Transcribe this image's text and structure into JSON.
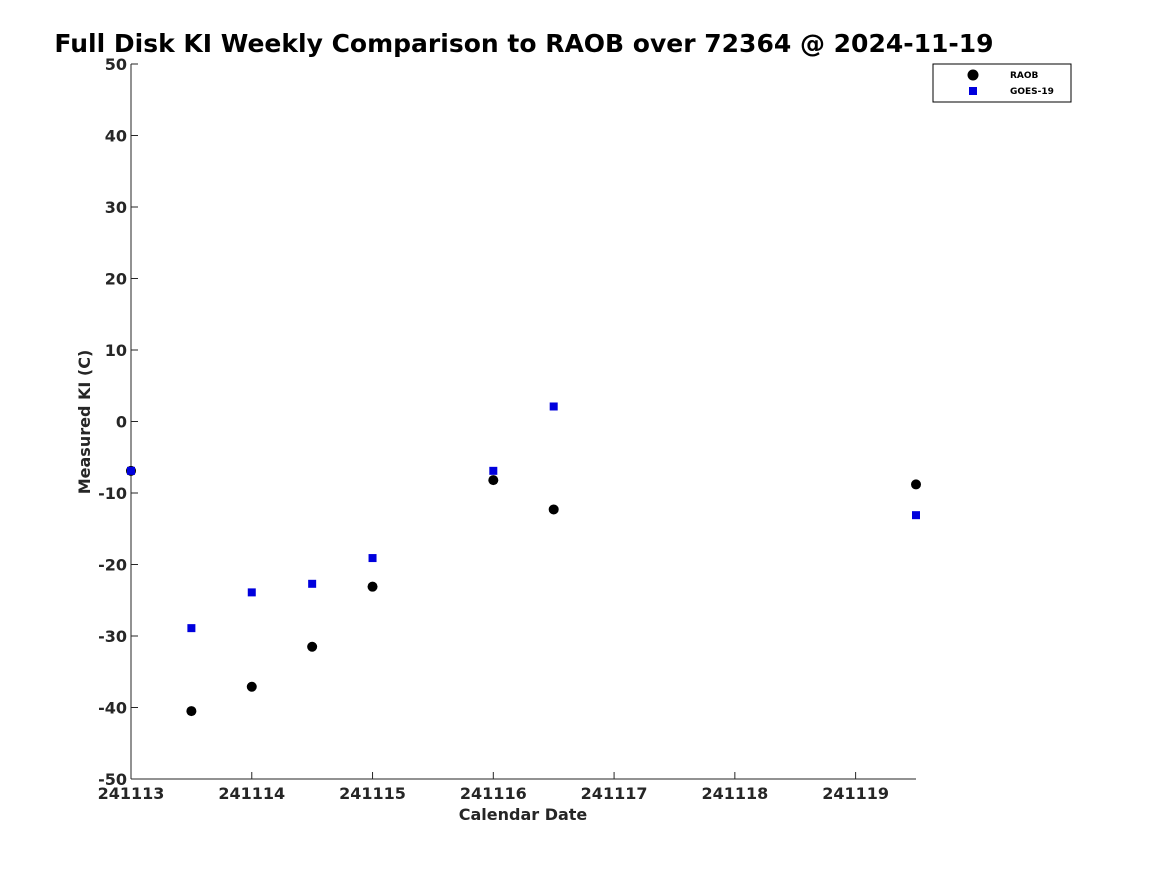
{
  "chart_data": {
    "type": "scatter",
    "title": "Full Disk KI Weekly Comparison to RAOB over 72364 @ 2024-11-19",
    "xlabel": "Calendar Date",
    "ylabel": "Measured KI (C)",
    "xlim": [
      "2024-11-13 00:00",
      "2024-11-19 12:00"
    ],
    "ylim": [
      -50,
      50
    ],
    "x_ticks": [
      {
        "date": "2024-11-13",
        "label": "241113"
      },
      {
        "date": "2024-11-14",
        "label": "241114"
      },
      {
        "date": "2024-11-15",
        "label": "241115"
      },
      {
        "date": "2024-11-16",
        "label": "241116"
      },
      {
        "date": "2024-11-17",
        "label": "241117"
      },
      {
        "date": "2024-11-18",
        "label": "241118"
      },
      {
        "date": "2024-11-19",
        "label": "241119"
      }
    ],
    "y_ticks": [
      50,
      40,
      30,
      20,
      10,
      0,
      -10,
      -20,
      -30,
      -40,
      -50
    ],
    "grid": false,
    "legend_position": "top-right",
    "series": [
      {
        "name": "RAOB",
        "marker": "circle",
        "color": "#000000",
        "points": [
          {
            "x": "2024-11-13 00:00",
            "y": -6.9
          },
          {
            "x": "2024-11-13 12:00",
            "y": -40.5
          },
          {
            "x": "2024-11-14 00:00",
            "y": -37.1
          },
          {
            "x": "2024-11-14 12:00",
            "y": -31.5
          },
          {
            "x": "2024-11-15 00:00",
            "y": -23.1
          },
          {
            "x": "2024-11-16 00:00",
            "y": -8.2
          },
          {
            "x": "2024-11-16 12:00",
            "y": -12.3
          },
          {
            "x": "2024-11-19 12:00",
            "y": -8.8
          }
        ]
      },
      {
        "name": "GOES-19",
        "marker": "square",
        "color": "#0000dd",
        "points": [
          {
            "x": "2024-11-13 00:00",
            "y": -6.9
          },
          {
            "x": "2024-11-13 12:00",
            "y": -28.9
          },
          {
            "x": "2024-11-14 00:00",
            "y": -23.9
          },
          {
            "x": "2024-11-14 12:00",
            "y": -22.7
          },
          {
            "x": "2024-11-15 00:00",
            "y": -19.1
          },
          {
            "x": "2024-11-16 00:00",
            "y": -6.9
          },
          {
            "x": "2024-11-16 12:00",
            "y": 2.1
          },
          {
            "x": "2024-11-19 12:00",
            "y": -13.1
          }
        ]
      }
    ]
  }
}
